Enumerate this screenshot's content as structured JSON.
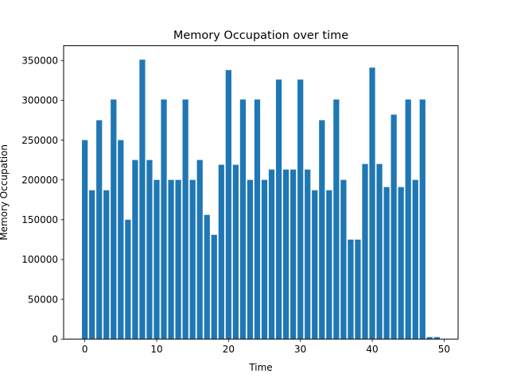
{
  "chart_data": {
    "type": "bar",
    "title": "Memory Occupation over time",
    "xlabel": "Time",
    "ylabel": "Memory Occupation",
    "bar_color": "#1f77b4",
    "x": [
      0,
      1,
      2,
      3,
      4,
      5,
      6,
      7,
      8,
      9,
      10,
      11,
      12,
      13,
      14,
      15,
      16,
      17,
      18,
      19,
      20,
      21,
      22,
      23,
      24,
      25,
      26,
      27,
      28,
      29,
      30,
      31,
      32,
      33,
      34,
      35,
      36,
      37,
      38,
      39,
      40,
      41,
      42,
      43,
      44,
      45,
      46,
      47,
      48,
      49
    ],
    "values": [
      250000,
      187000,
      275000,
      187000,
      301000,
      250000,
      150000,
      225000,
      351000,
      225000,
      200000,
      301000,
      200000,
      200000,
      301000,
      200000,
      225000,
      156000,
      131000,
      219000,
      338000,
      219000,
      301000,
      200000,
      301000,
      200000,
      213000,
      326000,
      213000,
      213000,
      326000,
      213000,
      187000,
      275000,
      187000,
      301000,
      200000,
      125000,
      125000,
      220000,
      341000,
      220000,
      191000,
      282000,
      191000,
      301000,
      200000,
      301000,
      2500,
      2500
    ],
    "xticks": [
      0,
      10,
      20,
      30,
      40,
      50
    ],
    "yticks": [
      0,
      50000,
      100000,
      150000,
      200000,
      250000,
      300000,
      350000
    ],
    "xlim": [
      -2.95,
      51.95
    ],
    "ylim": [
      0,
      368550
    ],
    "grid": false,
    "legend": false
  }
}
